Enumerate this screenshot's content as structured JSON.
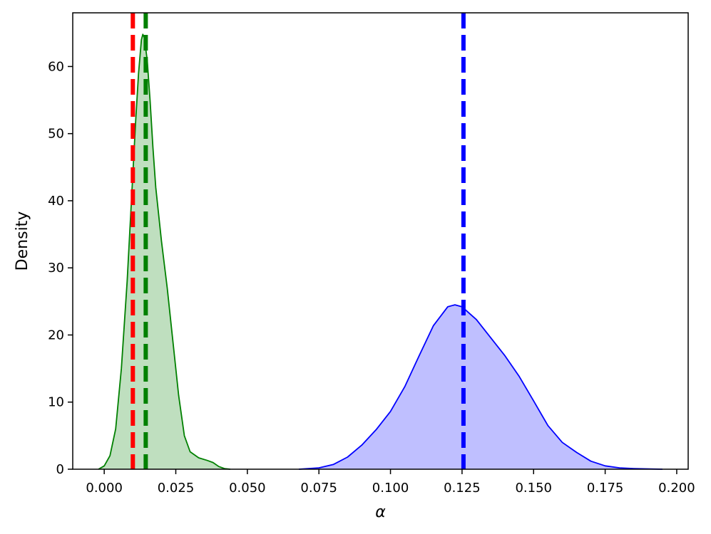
{
  "chart_data": {
    "type": "area",
    "title": "",
    "xlabel": "α",
    "ylabel": "Density",
    "xlim": [
      -0.011,
      0.204
    ],
    "ylim": [
      0,
      68
    ],
    "x_ticks": [
      "0.000",
      "0.025",
      "0.050",
      "0.075",
      "0.100",
      "0.125",
      "0.150",
      "0.175",
      "0.200"
    ],
    "y_ticks": [
      "0",
      "10",
      "20",
      "30",
      "40",
      "50",
      "60"
    ],
    "grid": false,
    "legend": "none",
    "series": [
      {
        "color": "#008000",
        "fill": "#bfdfbf",
        "points": [
          [
            -0.002,
            0
          ],
          [
            0.0,
            0.5
          ],
          [
            0.002,
            2
          ],
          [
            0.004,
            6
          ],
          [
            0.006,
            15
          ],
          [
            0.008,
            28
          ],
          [
            0.01,
            44
          ],
          [
            0.011,
            52
          ],
          [
            0.012,
            59
          ],
          [
            0.013,
            64
          ],
          [
            0.0135,
            64.8
          ],
          [
            0.014,
            64.3
          ],
          [
            0.015,
            61
          ],
          [
            0.016,
            55
          ],
          [
            0.017,
            48
          ],
          [
            0.018,
            42
          ],
          [
            0.02,
            34
          ],
          [
            0.022,
            27
          ],
          [
            0.024,
            19
          ],
          [
            0.026,
            11
          ],
          [
            0.028,
            5
          ],
          [
            0.03,
            2.6
          ],
          [
            0.033,
            1.7
          ],
          [
            0.036,
            1.3
          ],
          [
            0.038,
            1.0
          ],
          [
            0.04,
            0.4
          ],
          [
            0.042,
            0.1
          ],
          [
            0.044,
            0
          ]
        ]
      },
      {
        "color": "#0000ff",
        "fill": "#bfbfff",
        "points": [
          [
            0.068,
            0
          ],
          [
            0.075,
            0.2
          ],
          [
            0.08,
            0.7
          ],
          [
            0.085,
            1.8
          ],
          [
            0.09,
            3.6
          ],
          [
            0.095,
            5.9
          ],
          [
            0.1,
            8.6
          ],
          [
            0.105,
            12.3
          ],
          [
            0.11,
            16.9
          ],
          [
            0.115,
            21.4
          ],
          [
            0.12,
            24.2
          ],
          [
            0.1225,
            24.5
          ],
          [
            0.125,
            24.2
          ],
          [
            0.13,
            22.3
          ],
          [
            0.135,
            19.6
          ],
          [
            0.14,
            16.9
          ],
          [
            0.145,
            13.8
          ],
          [
            0.15,
            10.2
          ],
          [
            0.155,
            6.5
          ],
          [
            0.16,
            4.0
          ],
          [
            0.165,
            2.5
          ],
          [
            0.17,
            1.2
          ],
          [
            0.175,
            0.5
          ],
          [
            0.18,
            0.2
          ],
          [
            0.185,
            0.1
          ],
          [
            0.195,
            0
          ]
        ]
      }
    ],
    "vlines": [
      {
        "x": 0.01,
        "color": "#ff0000",
        "style": "dashed"
      },
      {
        "x": 0.0145,
        "color": "#008000",
        "style": "dashed"
      },
      {
        "x": 0.1255,
        "color": "#0000ff",
        "style": "dashed"
      }
    ]
  }
}
